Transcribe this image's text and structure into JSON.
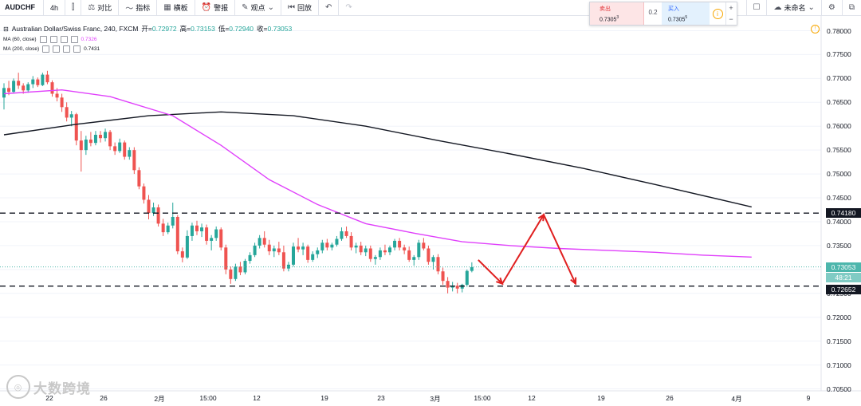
{
  "toolbar": {
    "symbol": "AUDCHF",
    "interval": "4h",
    "compare": "对比",
    "indicators": "指标",
    "templates": "横板",
    "alert": "警报",
    "ideas": "观点",
    "replay": "回放",
    "unnamed": "未命名"
  },
  "trade": {
    "sell_label": "卖出",
    "sell_price": "0.7305",
    "sell_sup": "3",
    "spread": "0.2",
    "buy_label": "买入",
    "buy_price": "0.7305",
    "buy_sup": "5",
    "info": "i",
    "plus": "+",
    "minus": "−"
  },
  "legend": {
    "title": "Australian Dollar/Swiss Franc, 240, FXCM",
    "open_lbl": "开=",
    "open": "0.72972",
    "high_lbl": "高=",
    "high": "0.73153",
    "low_lbl": "低=",
    "low": "0.72940",
    "close_lbl": "收=",
    "close": "0.73053",
    "ma1_label": "MA (60, close)",
    "ma1_value": "0.7326",
    "ma2_label": "MA (200, close)",
    "ma2_value": "0.7431"
  },
  "price_axis": {
    "ticks": [
      "0.78000",
      "0.77500",
      "0.77000",
      "0.76500",
      "0.76000",
      "0.75500",
      "0.75000",
      "0.74500",
      "0.74000",
      "0.73500",
      "0.73000",
      "0.72500",
      "0.72000",
      "0.71500",
      "0.71000",
      "0.70500"
    ],
    "tag_upper": "0.74180",
    "tag_current": "0.73053",
    "tag_countdown": "48:21",
    "tag_lower": "0.72652"
  },
  "time_axis": {
    "ticks": [
      "22",
      "26",
      "2月",
      "15:00",
      "12",
      "19",
      "23",
      "3月",
      "15:00",
      "12",
      "19",
      "26",
      "4月",
      "9"
    ]
  },
  "watermark": "大数跨境",
  "colors": {
    "up": "#26a69a",
    "down": "#ef5350",
    "ma60": "#e040fb",
    "ma200": "#131722",
    "arrow": "#e02020",
    "tag_dark": "#131722",
    "tag_current": "#4db6ac",
    "tag_countdown": "#80cbc4"
  },
  "chart_data": {
    "type": "candlestick",
    "symbol": "AUDCHF",
    "ylim": [
      0.705,
      0.7815
    ],
    "support": 0.72652,
    "resistance": 0.7418,
    "ohlc": [
      [
        0.766,
        0.769,
        0.7635,
        0.768
      ],
      [
        0.768,
        0.7695,
        0.7665,
        0.7672
      ],
      [
        0.7672,
        0.77,
        0.7668,
        0.7695
      ],
      [
        0.7695,
        0.7712,
        0.7678,
        0.7685
      ],
      [
        0.7685,
        0.769,
        0.7668,
        0.7675
      ],
      [
        0.7675,
        0.7692,
        0.767,
        0.7688
      ],
      [
        0.7688,
        0.7705,
        0.768,
        0.7698
      ],
      [
        0.7698,
        0.7702,
        0.7682,
        0.7686
      ],
      [
        0.7686,
        0.7712,
        0.7684,
        0.7708
      ],
      [
        0.7708,
        0.7716,
        0.7688,
        0.7692
      ],
      [
        0.7692,
        0.7696,
        0.7662,
        0.7668
      ],
      [
        0.7668,
        0.768,
        0.7652,
        0.766
      ],
      [
        0.766,
        0.7668,
        0.763,
        0.764
      ],
      [
        0.764,
        0.765,
        0.761,
        0.7618
      ],
      [
        0.7618,
        0.7632,
        0.76,
        0.7625
      ],
      [
        0.7625,
        0.7628,
        0.756,
        0.757
      ],
      [
        0.757,
        0.759,
        0.7505,
        0.755
      ],
      [
        0.755,
        0.758,
        0.754,
        0.7572
      ],
      [
        0.7572,
        0.7588,
        0.7558,
        0.7565
      ],
      [
        0.7565,
        0.759,
        0.756,
        0.7582
      ],
      [
        0.7582,
        0.759,
        0.7566,
        0.7575
      ],
      [
        0.7575,
        0.7595,
        0.7568,
        0.7588
      ],
      [
        0.7588,
        0.7592,
        0.755,
        0.7558
      ],
      [
        0.7558,
        0.7566,
        0.754,
        0.7548
      ],
      [
        0.7548,
        0.7574,
        0.7544,
        0.7566
      ],
      [
        0.7566,
        0.757,
        0.753,
        0.7536
      ],
      [
        0.7536,
        0.7556,
        0.753,
        0.755
      ],
      [
        0.755,
        0.7556,
        0.75,
        0.7508
      ],
      [
        0.7508,
        0.7514,
        0.7468,
        0.7474
      ],
      [
        0.7474,
        0.748,
        0.7438,
        0.7446
      ],
      [
        0.7446,
        0.7456,
        0.7405,
        0.7418
      ],
      [
        0.7418,
        0.744,
        0.7412,
        0.743
      ],
      [
        0.743,
        0.7436,
        0.739,
        0.7396
      ],
      [
        0.7396,
        0.7406,
        0.737,
        0.7378
      ],
      [
        0.7378,
        0.7398,
        0.7374,
        0.7392
      ],
      [
        0.7392,
        0.744,
        0.7386,
        0.741
      ],
      [
        0.741,
        0.7414,
        0.7332,
        0.7338
      ],
      [
        0.7338,
        0.7346,
        0.7315,
        0.7325
      ],
      [
        0.7325,
        0.7382,
        0.7322,
        0.737
      ],
      [
        0.737,
        0.7398,
        0.736,
        0.7392
      ],
      [
        0.7392,
        0.7402,
        0.7372,
        0.738
      ],
      [
        0.738,
        0.7396,
        0.7368,
        0.7388
      ],
      [
        0.7388,
        0.7394,
        0.7352,
        0.736
      ],
      [
        0.736,
        0.7372,
        0.734,
        0.7366
      ],
      [
        0.7366,
        0.739,
        0.736,
        0.7384
      ],
      [
        0.7384,
        0.7388,
        0.734,
        0.7346
      ],
      [
        0.7346,
        0.7352,
        0.729,
        0.73
      ],
      [
        0.73,
        0.7306,
        0.727,
        0.728
      ],
      [
        0.728,
        0.7312,
        0.7276,
        0.7306
      ],
      [
        0.7306,
        0.7316,
        0.7288,
        0.7294
      ],
      [
        0.7294,
        0.7322,
        0.729,
        0.7318
      ],
      [
        0.7318,
        0.7336,
        0.7312,
        0.733
      ],
      [
        0.733,
        0.7356,
        0.7326,
        0.735
      ],
      [
        0.735,
        0.7372,
        0.7344,
        0.7366
      ],
      [
        0.7366,
        0.738,
        0.7346,
        0.7352
      ],
      [
        0.7352,
        0.7362,
        0.733,
        0.7338
      ],
      [
        0.7338,
        0.735,
        0.7326,
        0.7344
      ],
      [
        0.7344,
        0.7358,
        0.733,
        0.7336
      ],
      [
        0.7336,
        0.735,
        0.7296,
        0.7302
      ],
      [
        0.7302,
        0.7316,
        0.7296,
        0.731
      ],
      [
        0.731,
        0.7356,
        0.7306,
        0.7348
      ],
      [
        0.7348,
        0.7366,
        0.7336,
        0.7342
      ],
      [
        0.7342,
        0.7356,
        0.733,
        0.7348
      ],
      [
        0.7348,
        0.7352,
        0.7314,
        0.732
      ],
      [
        0.732,
        0.7338,
        0.7316,
        0.7332
      ],
      [
        0.7332,
        0.7346,
        0.7324,
        0.734
      ],
      [
        0.734,
        0.7362,
        0.7334,
        0.7356
      ],
      [
        0.7356,
        0.7364,
        0.734,
        0.7346
      ],
      [
        0.7346,
        0.7356,
        0.734,
        0.7352
      ],
      [
        0.7352,
        0.737,
        0.7348,
        0.7364
      ],
      [
        0.7364,
        0.7388,
        0.736,
        0.738
      ],
      [
        0.738,
        0.739,
        0.7366,
        0.737
      ],
      [
        0.737,
        0.7378,
        0.734,
        0.7346
      ],
      [
        0.7346,
        0.7356,
        0.7334,
        0.735
      ],
      [
        0.735,
        0.7358,
        0.733,
        0.7336
      ],
      [
        0.7336,
        0.735,
        0.7328,
        0.7344
      ],
      [
        0.7344,
        0.735,
        0.7316,
        0.7322
      ],
      [
        0.7322,
        0.733,
        0.731,
        0.7326
      ],
      [
        0.7326,
        0.7346,
        0.732,
        0.734
      ],
      [
        0.734,
        0.7352,
        0.733,
        0.7336
      ],
      [
        0.7336,
        0.735,
        0.733,
        0.7346
      ],
      [
        0.7346,
        0.7364,
        0.734,
        0.736
      ],
      [
        0.736,
        0.7366,
        0.734,
        0.7346
      ],
      [
        0.7346,
        0.7352,
        0.7332,
        0.734
      ],
      [
        0.734,
        0.7348,
        0.7316,
        0.732
      ],
      [
        0.732,
        0.733,
        0.7308,
        0.7326
      ],
      [
        0.7326,
        0.7362,
        0.732,
        0.7356
      ],
      [
        0.7356,
        0.7366,
        0.734,
        0.7344
      ],
      [
        0.7344,
        0.735,
        0.731,
        0.7316
      ],
      [
        0.7316,
        0.733,
        0.73,
        0.7326
      ],
      [
        0.7326,
        0.7332,
        0.729,
        0.7296
      ],
      [
        0.7296,
        0.7304,
        0.7268,
        0.7276
      ],
      [
        0.7276,
        0.7284,
        0.725,
        0.7262
      ],
      [
        0.7262,
        0.7274,
        0.7254,
        0.7266
      ],
      [
        0.7266,
        0.7272,
        0.725,
        0.726
      ],
      [
        0.726,
        0.727,
        0.7252,
        0.7268
      ],
      [
        0.7268,
        0.73,
        0.7264,
        0.7297
      ],
      [
        0.7297,
        0.7315,
        0.7294,
        0.7305
      ]
    ],
    "ma60": [
      [
        0,
        0.7668
      ],
      [
        12,
        0.7676
      ],
      [
        22,
        0.7662
      ],
      [
        35,
        0.7622
      ],
      [
        45,
        0.756
      ],
      [
        55,
        0.7488
      ],
      [
        65,
        0.7436
      ],
      [
        75,
        0.7396
      ],
      [
        85,
        0.7376
      ],
      [
        95,
        0.7358
      ],
      [
        105,
        0.735
      ],
      [
        115,
        0.7344
      ],
      [
        125,
        0.734
      ],
      [
        135,
        0.7336
      ],
      [
        145,
        0.733
      ],
      [
        155,
        0.7326
      ]
    ],
    "ma200": [
      [
        0,
        0.7582
      ],
      [
        15,
        0.7604
      ],
      [
        30,
        0.7622
      ],
      [
        45,
        0.763
      ],
      [
        60,
        0.7622
      ],
      [
        75,
        0.76
      ],
      [
        90,
        0.757
      ],
      [
        105,
        0.7542
      ],
      [
        120,
        0.7512
      ],
      [
        135,
        0.7478
      ],
      [
        155,
        0.7431
      ]
    ]
  }
}
